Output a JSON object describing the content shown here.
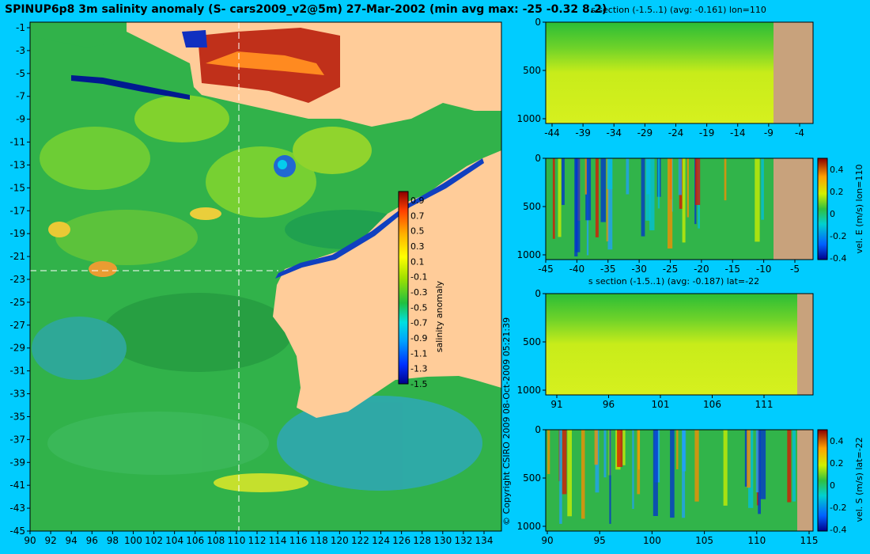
{
  "main": {
    "title": "SPINUP6p8 3m salinity anomaly (S- cars2009_v2@5m) 27-Mar-2002 (min avg max: -25 -0.32 8.2)",
    "copyright": "© Copyright CSIRO 2009   08-Oct-2009 05:21:39",
    "colorbar_label": "salinity anomaly",
    "colorbar_ticks": [
      "0.9",
      "0.7",
      "0.5",
      "0.3",
      "0.1",
      "-0.1",
      "-0.3",
      "-0.5",
      "-0.7",
      "-0.9",
      "-1.1",
      "-1.3",
      "-1.5"
    ],
    "x_ticks": [
      "90",
      "92",
      "94",
      "96",
      "98",
      "100",
      "102",
      "104",
      "106",
      "108",
      "110",
      "112",
      "114",
      "116",
      "118",
      "120",
      "122",
      "124",
      "126",
      "128",
      "130",
      "132",
      "134"
    ],
    "y_ticks": [
      "-1",
      "-3",
      "-5",
      "-7",
      "-9",
      "-11",
      "-13",
      "-15",
      "-17",
      "-19",
      "-21",
      "-23",
      "-25",
      "-27",
      "-29",
      "-31",
      "-33",
      "-35",
      "-37",
      "-39",
      "-41",
      "-43",
      "-45"
    ]
  },
  "panel1": {
    "title": "s section (-1.5..1) (avg: -0.161) lon=110",
    "x_ticks": [
      "-44",
      "-39",
      "-34",
      "-29",
      "-24",
      "-19",
      "-14",
      "-9",
      "-4"
    ],
    "y_ticks": [
      "0",
      "500",
      "1000"
    ]
  },
  "panel2": {
    "x_ticks": [
      "-45",
      "-40",
      "-35",
      "-30",
      "-25",
      "-20",
      "-15",
      "-10",
      "-5"
    ],
    "y_ticks": [
      "0",
      "500",
      "1000"
    ],
    "colorbar_ticks": [
      "0.4",
      "0.2",
      "0",
      "-0.2",
      "-0.4"
    ],
    "colorbar_label": "vel. E (m/s) lon=110"
  },
  "panel3": {
    "title": "s section (-1.5..1) (avg: -0.187) lat=-22",
    "x_ticks": [
      "91",
      "96",
      "101",
      "106",
      "111"
    ],
    "y_ticks": [
      "0",
      "500",
      "1000"
    ]
  },
  "panel4": {
    "x_ticks": [
      "90",
      "95",
      "100",
      "105",
      "110",
      "115"
    ],
    "y_ticks": [
      "0",
      "500",
      "1000"
    ],
    "colorbar_ticks": [
      "0.4",
      "0.2",
      "0",
      "-0.2",
      "-0.4"
    ],
    "colorbar_label": "vel. S (m/s) lat=-22"
  },
  "colors": {
    "background": "#00ccff",
    "land": "#ffcc99",
    "section_land": "#c8a27c",
    "sea": "#2fb040"
  },
  "chart_data": [
    {
      "type": "heatmap",
      "title": "SPINUP6p8 3m salinity anomaly (S- cars2009_v2@5m) 27-Mar-2002 (min avg max: -25 -0.32 8.2)",
      "xlabel": "",
      "ylabel": "",
      "xlim": [
        90,
        135
      ],
      "ylim": [
        -45,
        0
      ],
      "colorbar_range": [
        -1.5,
        1
      ],
      "colorbar_label": "salinity anomaly",
      "stats": {
        "min": -25,
        "avg": -0.32,
        "max": 8.2
      },
      "section_lines": {
        "lon": 110,
        "lat": -22
      }
    },
    {
      "type": "heatmap",
      "title": "s section (-1.5..1) (avg: -0.161) lon=110",
      "xlim": [
        -45,
        -2
      ],
      "ylim": [
        1050,
        0
      ],
      "colorbar_range": [
        -1.5,
        1
      ],
      "avg": -0.161
    },
    {
      "type": "heatmap",
      "title": "",
      "xlim": [
        -45,
        -2
      ],
      "ylim": [
        1050,
        0
      ],
      "colorbar_range": [
        -0.4,
        0.4
      ],
      "colorbar_label": "vel. E (m/s) lon=110"
    },
    {
      "type": "heatmap",
      "title": "s section (-1.5..1) (avg: -0.187) lat=-22",
      "xlim": [
        89.5,
        116
      ],
      "ylim": [
        1050,
        0
      ],
      "colorbar_range": [
        -1.5,
        1
      ],
      "avg": -0.187
    },
    {
      "type": "heatmap",
      "title": "",
      "xlim": [
        90,
        115
      ],
      "ylim": [
        1050,
        0
      ],
      "colorbar_range": [
        -0.4,
        0.4
      ],
      "colorbar_label": "vel. S (m/s) lat=-22"
    }
  ]
}
